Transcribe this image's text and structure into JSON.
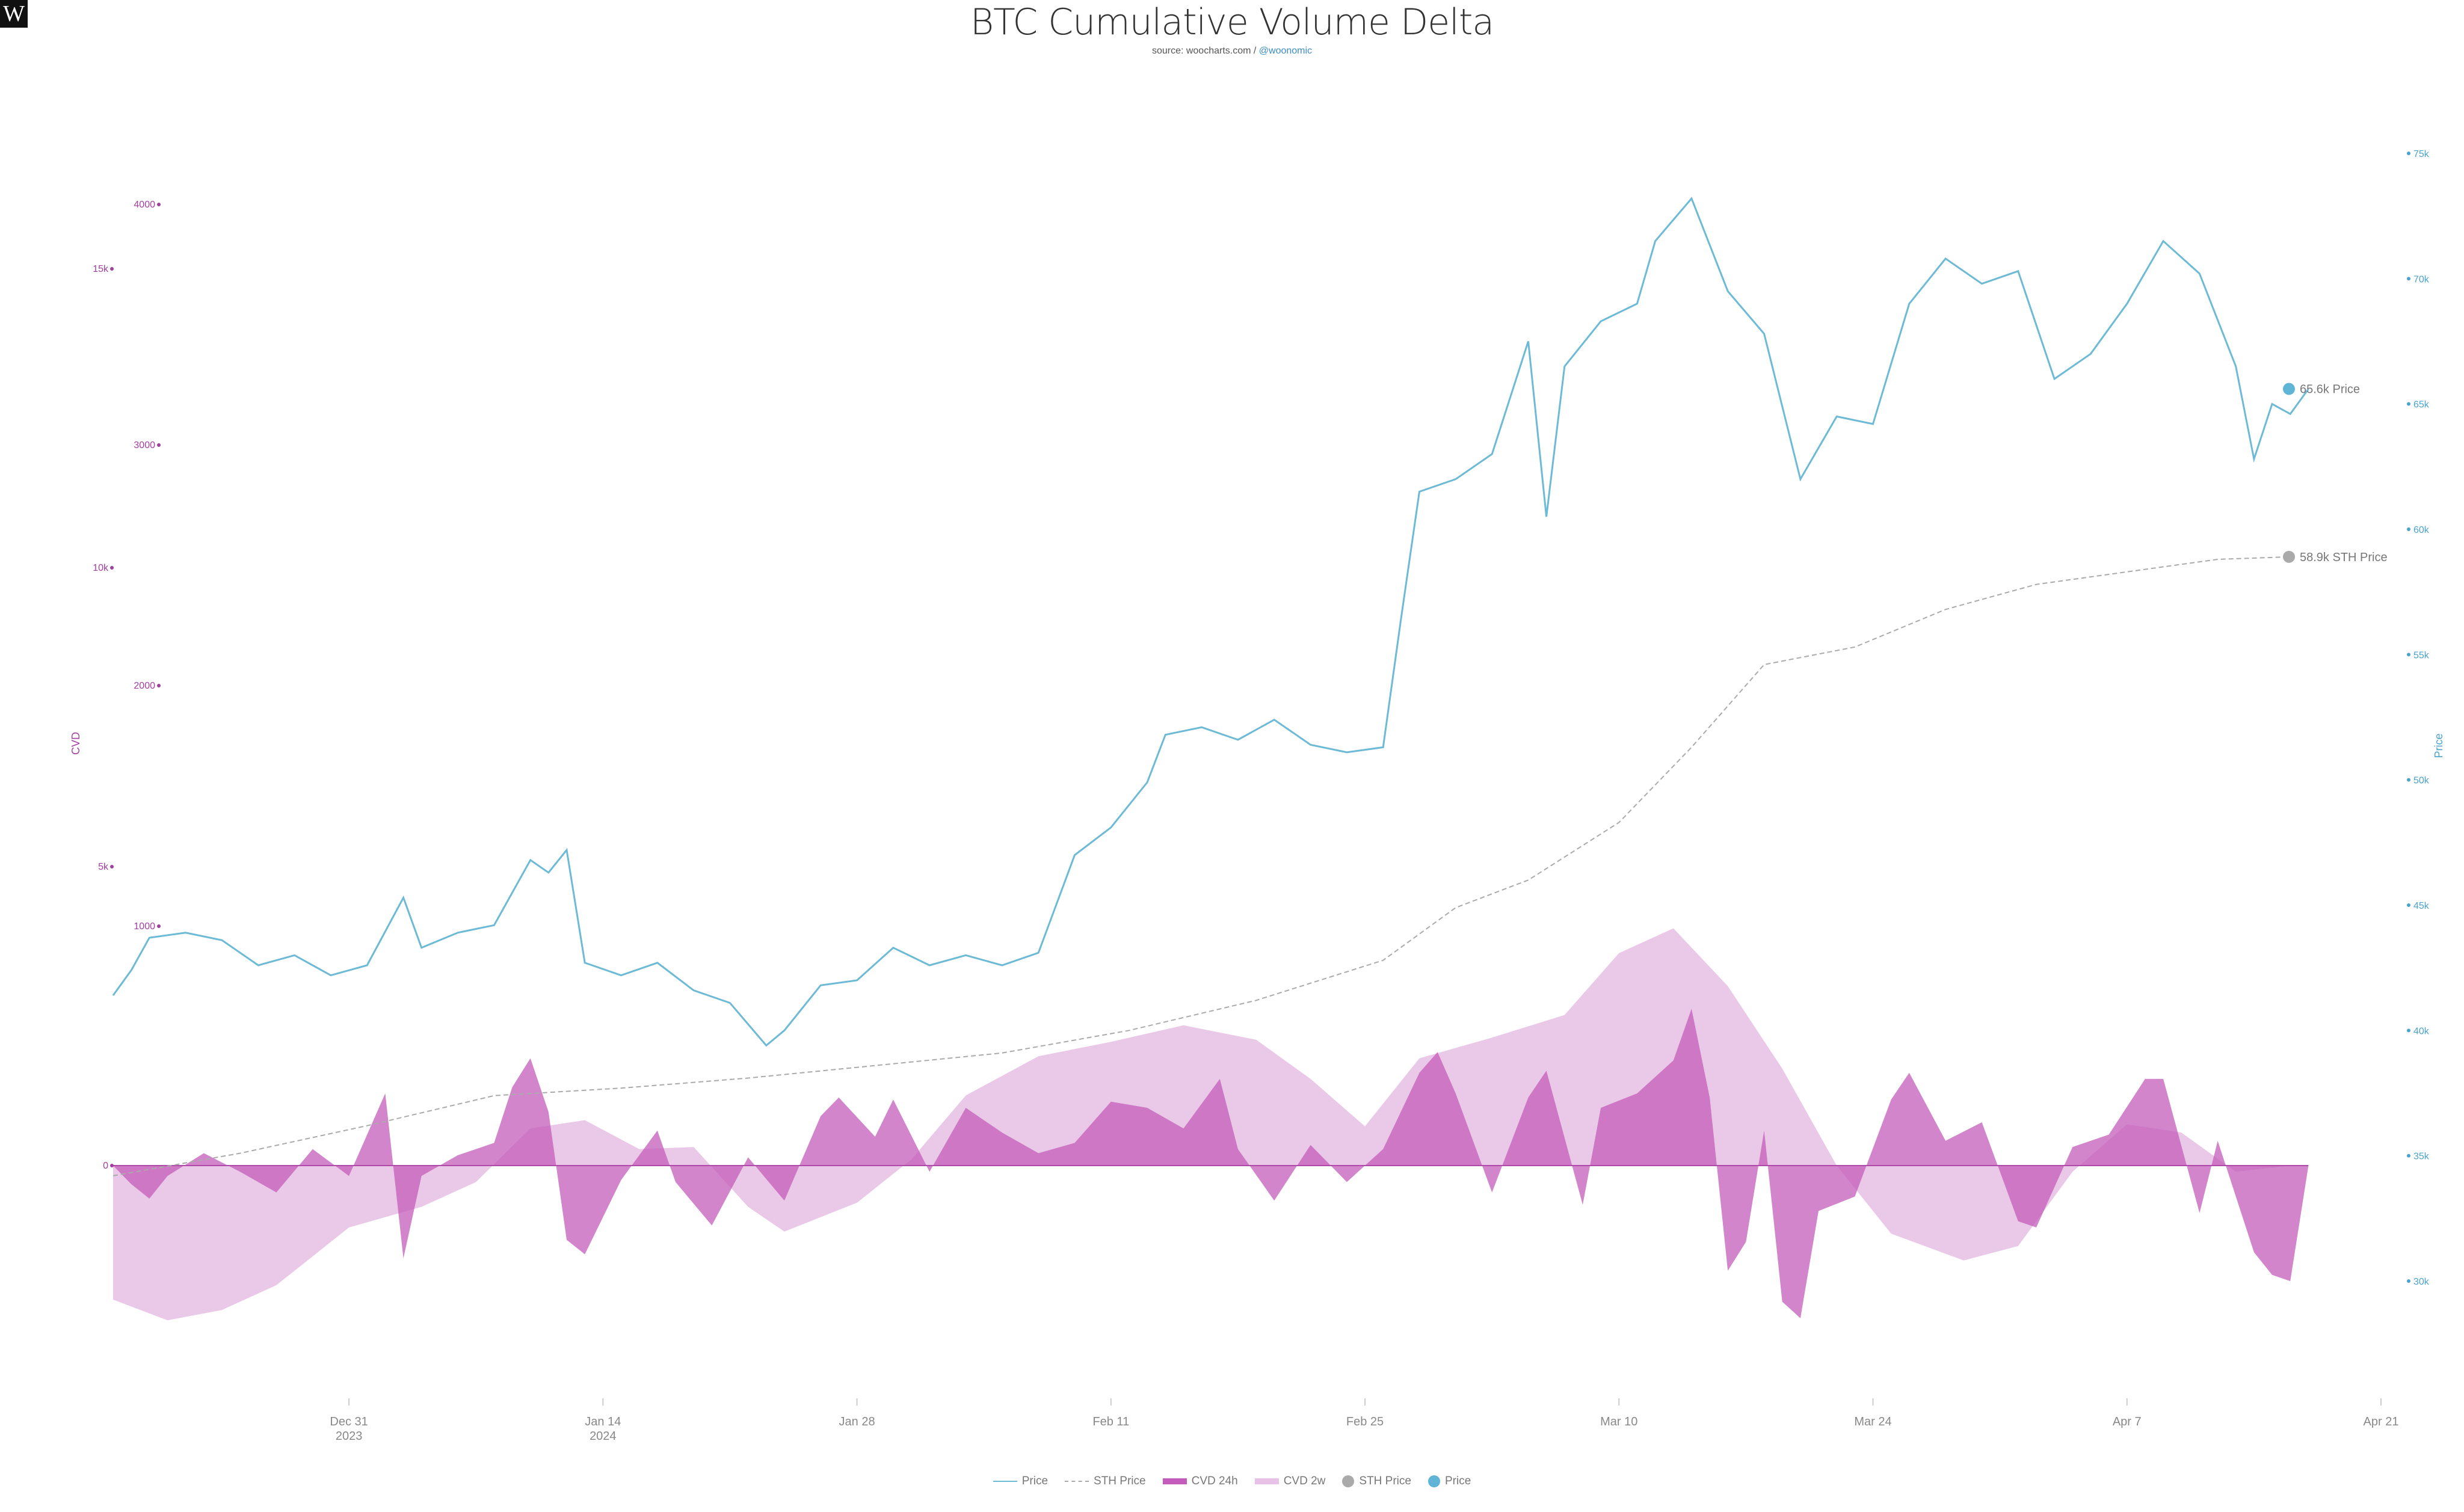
{
  "header": {
    "logo_text": "W",
    "title": "BTC Cumulative Volume Delta",
    "source_prefix": "source: woocharts.com / ",
    "source_handle": "@woonomic"
  },
  "legend": [
    {
      "label": "Price",
      "kind": "line",
      "color": "#6cbad6"
    },
    {
      "label": "STH Price",
      "kind": "dash",
      "color": "#aaaaaa"
    },
    {
      "label": "CVD 24h",
      "kind": "bar1",
      "color": "#c35cba"
    },
    {
      "label": "CVD 2w",
      "kind": "bar2",
      "color": "#e8c2e6"
    },
    {
      "label": "STH Price",
      "kind": "dot",
      "color": "#aaaaaa"
    },
    {
      "label": "Price",
      "kind": "dot",
      "color": "#5fb5d6"
    }
  ],
  "chart_data": {
    "type": "line",
    "title": "BTC Cumulative Volume Delta",
    "x_ticks": [
      {
        "label": "Dec 31",
        "sub": "2023"
      },
      {
        "label": "Jan 14",
        "sub": "2024"
      },
      {
        "label": "Jan 28",
        "sub": ""
      },
      {
        "label": "Feb 11",
        "sub": ""
      },
      {
        "label": "Feb 25",
        "sub": ""
      },
      {
        "label": "Mar 10",
        "sub": ""
      },
      {
        "label": "Mar 24",
        "sub": ""
      },
      {
        "label": "Apr 7",
        "sub": ""
      },
      {
        "label": "Apr 21",
        "sub": ""
      }
    ],
    "x_range": [
      "2023-12-18",
      "2024-04-21"
    ],
    "y_left_title": "CVD",
    "y_left_ticks_cvd2w": [
      "1000",
      "2000",
      "3000",
      "4000"
    ],
    "y_left_ticks_cvd": [
      "0",
      "5k",
      "10k",
      "15k"
    ],
    "y_right_title": "Price",
    "y_right_ticks": [
      "30k",
      "35k",
      "40k",
      "45k",
      "50k",
      "55k",
      "60k",
      "65k",
      "70k",
      "75k"
    ],
    "y_right_range": [
      30000,
      75000
    ],
    "series": [
      {
        "name": "Price",
        "color": "#6cbad6",
        "points": [
          [
            "2023-12-18",
            41400
          ],
          [
            "2023-12-19",
            42400
          ],
          [
            "2023-12-20",
            43700
          ],
          [
            "2023-12-22",
            43900
          ],
          [
            "2023-12-24",
            43600
          ],
          [
            "2023-12-26",
            42600
          ],
          [
            "2023-12-28",
            43000
          ],
          [
            "2023-12-30",
            42200
          ],
          [
            "2024-01-01",
            42600
          ],
          [
            "2024-01-03",
            45300
          ],
          [
            "2024-01-04",
            43300
          ],
          [
            "2024-01-06",
            43900
          ],
          [
            "2024-01-08",
            44200
          ],
          [
            "2024-01-10",
            46800
          ],
          [
            "2024-01-11",
            46300
          ],
          [
            "2024-01-12",
            47200
          ],
          [
            "2024-01-13",
            42700
          ],
          [
            "2024-01-15",
            42200
          ],
          [
            "2024-01-17",
            42700
          ],
          [
            "2024-01-19",
            41600
          ],
          [
            "2024-01-21",
            41100
          ],
          [
            "2024-01-23",
            39400
          ],
          [
            "2024-01-24",
            40000
          ],
          [
            "2024-01-26",
            41800
          ],
          [
            "2024-01-28",
            42000
          ],
          [
            "2024-01-30",
            43300
          ],
          [
            "2024-02-01",
            42600
          ],
          [
            "2024-02-03",
            43000
          ],
          [
            "2024-02-05",
            42600
          ],
          [
            "2024-02-07",
            43100
          ],
          [
            "2024-02-09",
            47000
          ],
          [
            "2024-02-11",
            48100
          ],
          [
            "2024-02-13",
            49900
          ],
          [
            "2024-02-14",
            51800
          ],
          [
            "2024-02-16",
            52100
          ],
          [
            "2024-02-18",
            51600
          ],
          [
            "2024-02-20",
            52400
          ],
          [
            "2024-02-22",
            51400
          ],
          [
            "2024-02-24",
            51100
          ],
          [
            "2024-02-26",
            51300
          ],
          [
            "2024-02-27",
            56500
          ],
          [
            "2024-02-28",
            61500
          ],
          [
            "2024-03-01",
            62000
          ],
          [
            "2024-03-03",
            63000
          ],
          [
            "2024-03-05",
            67500
          ],
          [
            "2024-03-06",
            60500
          ],
          [
            "2024-03-07",
            66500
          ],
          [
            "2024-03-09",
            68300
          ],
          [
            "2024-03-11",
            69000
          ],
          [
            "2024-03-12",
            71500
          ],
          [
            "2024-03-14",
            73200
          ],
          [
            "2024-03-16",
            69500
          ],
          [
            "2024-03-18",
            67800
          ],
          [
            "2024-03-20",
            62000
          ],
          [
            "2024-03-22",
            64500
          ],
          [
            "2024-03-24",
            64200
          ],
          [
            "2024-03-26",
            69000
          ],
          [
            "2024-03-28",
            70800
          ],
          [
            "2024-03-30",
            69800
          ],
          [
            "2024-04-01",
            70300
          ],
          [
            "2024-04-03",
            66000
          ],
          [
            "2024-04-05",
            67000
          ],
          [
            "2024-04-07",
            69000
          ],
          [
            "2024-04-09",
            71500
          ],
          [
            "2024-04-11",
            70200
          ],
          [
            "2024-04-13",
            66500
          ],
          [
            "2024-04-14",
            62800
          ],
          [
            "2024-04-15",
            65000
          ],
          [
            "2024-04-16",
            64600
          ],
          [
            "2024-04-17",
            65600
          ]
        ]
      },
      {
        "name": "STH Price",
        "color": "#aaaaaa",
        "points": [
          [
            "2023-12-18",
            34200
          ],
          [
            "2023-12-25",
            35100
          ],
          [
            "2024-01-01",
            36200
          ],
          [
            "2024-01-08",
            37400
          ],
          [
            "2024-01-15",
            37700
          ],
          [
            "2024-01-22",
            38100
          ],
          [
            "2024-01-29",
            38600
          ],
          [
            "2024-02-05",
            39100
          ],
          [
            "2024-02-12",
            40000
          ],
          [
            "2024-02-19",
            41200
          ],
          [
            "2024-02-26",
            42800
          ],
          [
            "2024-03-01",
            44900
          ],
          [
            "2024-03-05",
            46000
          ],
          [
            "2024-03-10",
            48300
          ],
          [
            "2024-03-14",
            51300
          ],
          [
            "2024-03-18",
            54600
          ],
          [
            "2024-03-23",
            55300
          ],
          [
            "2024-03-28",
            56800
          ],
          [
            "2024-04-02",
            57800
          ],
          [
            "2024-04-07",
            58300
          ],
          [
            "2024-04-12",
            58800
          ],
          [
            "2024-04-16",
            58900
          ]
        ]
      }
    ],
    "cvd_24h": [
      [
        "2023-12-18",
        0
      ],
      [
        "2023-12-19",
        -900
      ],
      [
        "2023-12-20",
        -1600
      ],
      [
        "2023-12-21",
        -500
      ],
      [
        "2023-12-23",
        600
      ],
      [
        "2023-12-25",
        -300
      ],
      [
        "2023-12-27",
        -1300
      ],
      [
        "2023-12-29",
        800
      ],
      [
        "2023-12-31",
        -500
      ],
      [
        "2024-01-02",
        3500
      ],
      [
        "2024-01-03",
        -4500
      ],
      [
        "2024-01-04",
        -500
      ],
      [
        "2024-01-06",
        500
      ],
      [
        "2024-01-08",
        1100
      ],
      [
        "2024-01-09",
        3800
      ],
      [
        "2024-01-10",
        5200
      ],
      [
        "2024-01-11",
        2600
      ],
      [
        "2024-01-12",
        -3600
      ],
      [
        "2024-01-13",
        -4300
      ],
      [
        "2024-01-15",
        -700
      ],
      [
        "2024-01-17",
        1700
      ],
      [
        "2024-01-18",
        -800
      ],
      [
        "2024-01-20",
        -2900
      ],
      [
        "2024-01-22",
        400
      ],
      [
        "2024-01-24",
        -1700
      ],
      [
        "2024-01-26",
        2400
      ],
      [
        "2024-01-27",
        3300
      ],
      [
        "2024-01-29",
        1400
      ],
      [
        "2024-01-30",
        3200
      ],
      [
        "2024-02-01",
        -300
      ],
      [
        "2024-02-03",
        2800
      ],
      [
        "2024-02-05",
        1600
      ],
      [
        "2024-02-07",
        600
      ],
      [
        "2024-02-09",
        1100
      ],
      [
        "2024-02-11",
        3100
      ],
      [
        "2024-02-13",
        2800
      ],
      [
        "2024-02-15",
        1800
      ],
      [
        "2024-02-17",
        4200
      ],
      [
        "2024-02-18",
        800
      ],
      [
        "2024-02-20",
        -1700
      ],
      [
        "2024-02-22",
        1000
      ],
      [
        "2024-02-24",
        -800
      ],
      [
        "2024-02-26",
        800
      ],
      [
        "2024-02-28",
        4500
      ],
      [
        "2024-02-29",
        5500
      ],
      [
        "2024-03-01",
        3500
      ],
      [
        "2024-03-03",
        -1300
      ],
      [
        "2024-03-05",
        3300
      ],
      [
        "2024-03-06",
        4600
      ],
      [
        "2024-03-08",
        -1900
      ],
      [
        "2024-03-09",
        2800
      ],
      [
        "2024-03-11",
        3500
      ],
      [
        "2024-03-13",
        5100
      ],
      [
        "2024-03-14",
        7600
      ],
      [
        "2024-03-15",
        3300
      ],
      [
        "2024-03-16",
        -5100
      ],
      [
        "2024-03-17",
        -3700
      ],
      [
        "2024-03-18",
        1700
      ],
      [
        "2024-03-19",
        -6600
      ],
      [
        "2024-03-20",
        -7400
      ],
      [
        "2024-03-21",
        -2200
      ],
      [
        "2024-03-23",
        -1500
      ],
      [
        "2024-03-25",
        3200
      ],
      [
        "2024-03-26",
        4500
      ],
      [
        "2024-03-28",
        1200
      ],
      [
        "2024-03-30",
        2100
      ],
      [
        "2024-04-01",
        -2700
      ],
      [
        "2024-04-02",
        -3000
      ],
      [
        "2024-04-04",
        900
      ],
      [
        "2024-04-06",
        1500
      ],
      [
        "2024-04-08",
        4200
      ],
      [
        "2024-04-09",
        4200
      ],
      [
        "2024-04-11",
        -2300
      ],
      [
        "2024-04-12",
        1200
      ],
      [
        "2024-04-14",
        -4200
      ],
      [
        "2024-04-15",
        -5300
      ],
      [
        "2024-04-16",
        -5600
      ],
      [
        "2024-04-17",
        0
      ]
    ],
    "cvd_2w": [
      [
        "2023-12-18",
        -6500
      ],
      [
        "2023-12-21",
        -7500
      ],
      [
        "2023-12-24",
        -7000
      ],
      [
        "2023-12-27",
        -5800
      ],
      [
        "2023-12-31",
        -3000
      ],
      [
        "2024-01-04",
        -2000
      ],
      [
        "2024-01-07",
        -800
      ],
      [
        "2024-01-10",
        1800
      ],
      [
        "2024-01-13",
        2200
      ],
      [
        "2024-01-16",
        800
      ],
      [
        "2024-01-19",
        900
      ],
      [
        "2024-01-22",
        -2000
      ],
      [
        "2024-01-24",
        -3200
      ],
      [
        "2024-01-28",
        -1800
      ],
      [
        "2024-01-31",
        300
      ],
      [
        "2024-02-03",
        3400
      ],
      [
        "2024-02-07",
        5300
      ],
      [
        "2024-02-11",
        6000
      ],
      [
        "2024-02-15",
        6800
      ],
      [
        "2024-02-19",
        6100
      ],
      [
        "2024-02-22",
        4200
      ],
      [
        "2024-02-25",
        1900
      ],
      [
        "2024-02-28",
        5200
      ],
      [
        "2024-03-03",
        6200
      ],
      [
        "2024-03-07",
        7300
      ],
      [
        "2024-03-10",
        10300
      ],
      [
        "2024-03-13",
        11500
      ],
      [
        "2024-03-16",
        8700
      ],
      [
        "2024-03-19",
        4700
      ],
      [
        "2024-03-22",
        0
      ],
      [
        "2024-03-25",
        -3300
      ],
      [
        "2024-03-29",
        -4600
      ],
      [
        "2024-04-01",
        -3900
      ],
      [
        "2024-04-04",
        -300
      ],
      [
        "2024-04-07",
        2000
      ],
      [
        "2024-04-10",
        1600
      ],
      [
        "2024-04-13",
        -300
      ],
      [
        "2024-04-16",
        0
      ]
    ],
    "end_labels": [
      {
        "label": "65.6k Price",
        "value": 65600,
        "color": "#5fb5d6"
      },
      {
        "label": "58.9k STH Price",
        "value": 58900,
        "color": "#aaaaaa"
      }
    ],
    "grid": false,
    "legend_position": "bottom-center"
  }
}
